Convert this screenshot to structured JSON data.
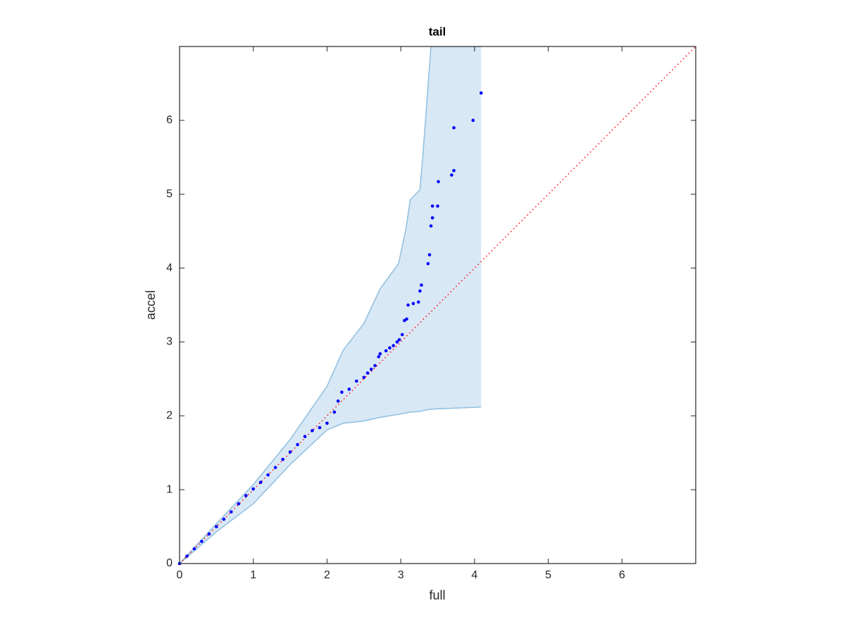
{
  "chart_data": {
    "type": "scatter",
    "title": "tail",
    "xlabel": "full",
    "ylabel": "accel",
    "xlim": [
      0,
      7
    ],
    "ylim": [
      0,
      7
    ],
    "xticks": [
      0,
      1,
      2,
      3,
      4,
      5,
      6
    ],
    "yticks": [
      0,
      1,
      2,
      3,
      4,
      5,
      6
    ],
    "band": {
      "color": "#d9e8f5",
      "edge_color": "#8ebfe0",
      "x": [
        0,
        0.5,
        1,
        1.5,
        2,
        2.22,
        2.5,
        2.72,
        2.97,
        3.07,
        3.13,
        3.26,
        3.3,
        3.41,
        4.09
      ],
      "upper": [
        0,
        0.54,
        1.07,
        1.68,
        2.4,
        2.89,
        3.25,
        3.72,
        4.06,
        4.53,
        4.93,
        5.06,
        5.53,
        7,
        7
      ],
      "lower": [
        0,
        0.43,
        0.81,
        1.34,
        1.81,
        1.9,
        1.93,
        1.98,
        2.02,
        2.04,
        2.05,
        2.06,
        2.07,
        2.09,
        2.12
      ]
    },
    "reference": {
      "color": "#ff0000",
      "x": [
        0,
        7
      ],
      "values": [
        0,
        7
      ]
    },
    "points": {
      "color": "#0000ff",
      "x": [
        0,
        0.1,
        0.2,
        0.3,
        0.4,
        0.5,
        0.6,
        0.7,
        0.8,
        0.9,
        1.0,
        1.1,
        1.2,
        1.3,
        1.4,
        1.5,
        1.6,
        1.7,
        1.8,
        1.9,
        2.0,
        2.1,
        2.15,
        2.2,
        2.3,
        2.4,
        2.5,
        2.55,
        2.6,
        2.65,
        2.7,
        2.72,
        2.8,
        2.85,
        2.9,
        2.95,
        2.98,
        3.02,
        3.05,
        3.08,
        3.1,
        3.17,
        3.24,
        3.26,
        3.28,
        3.37,
        3.39,
        3.41,
        3.43,
        3.43,
        3.5,
        3.51,
        3.69,
        3.72,
        3.72,
        3.98,
        4.09
      ],
      "values": [
        0,
        0.1,
        0.2,
        0.3,
        0.4,
        0.5,
        0.6,
        0.7,
        0.81,
        0.92,
        1.01,
        1.1,
        1.2,
        1.3,
        1.41,
        1.51,
        1.61,
        1.72,
        1.8,
        1.84,
        1.9,
        2.05,
        2.2,
        2.32,
        2.36,
        2.47,
        2.52,
        2.58,
        2.63,
        2.68,
        2.8,
        2.84,
        2.88,
        2.92,
        2.95,
        3.0,
        3.03,
        3.1,
        3.29,
        3.31,
        3.5,
        3.52,
        3.54,
        3.69,
        3.77,
        4.06,
        4.18,
        4.57,
        4.68,
        4.84,
        4.84,
        5.17,
        5.26,
        5.32,
        5.9,
        6.0,
        6.37
      ]
    }
  }
}
